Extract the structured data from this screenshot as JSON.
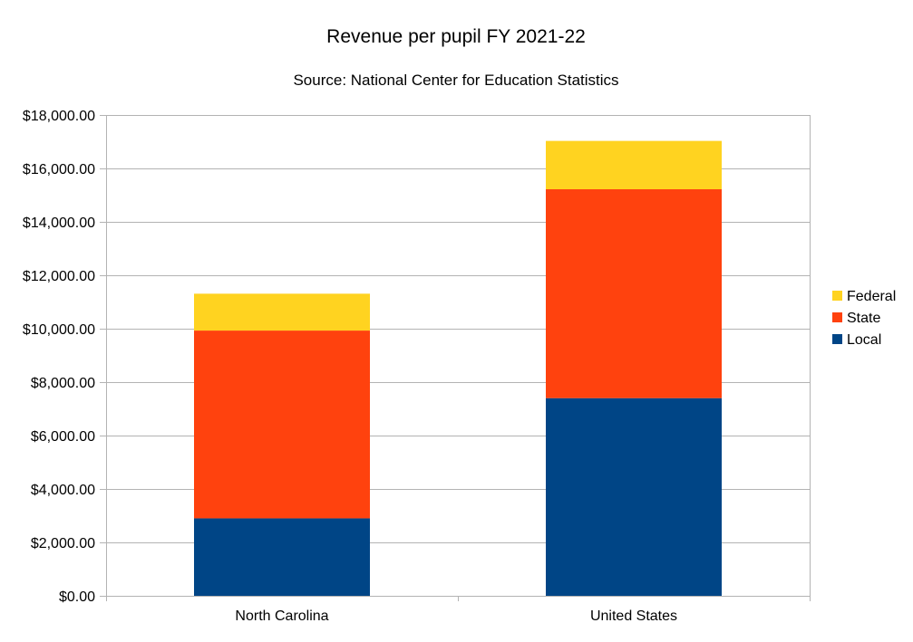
{
  "chart_data": {
    "type": "bar",
    "stacked": true,
    "title": "Revenue per pupil FY 2021-22",
    "subtitle": "Source: National Center for Education Statistics",
    "xlabel": "",
    "ylabel": "",
    "categories": [
      "North Carolina",
      "United States"
    ],
    "series": [
      {
        "name": "Local",
        "color": "#004586",
        "values": [
          2900,
          7400
        ]
      },
      {
        "name": "State",
        "color": "#ff420e",
        "values": [
          7030,
          7820
        ]
      },
      {
        "name": "Federal",
        "color": "#ffd320",
        "values": [
          1380,
          1810
        ]
      }
    ],
    "ylim": [
      0,
      18000
    ],
    "yticks": [
      0,
      2000,
      4000,
      6000,
      8000,
      10000,
      12000,
      14000,
      16000,
      18000
    ],
    "ytick_labels": [
      "$0.00",
      "$2,000.00",
      "$4,000.00",
      "$6,000.00",
      "$8,000.00",
      "$10,000.00",
      "$12,000.00",
      "$14,000.00",
      "$16,000.00",
      "$18,000.00"
    ],
    "grid": true,
    "legend_position": "right",
    "legend_order": [
      "Federal",
      "State",
      "Local"
    ],
    "gridline_color": "#b3b3b3"
  }
}
